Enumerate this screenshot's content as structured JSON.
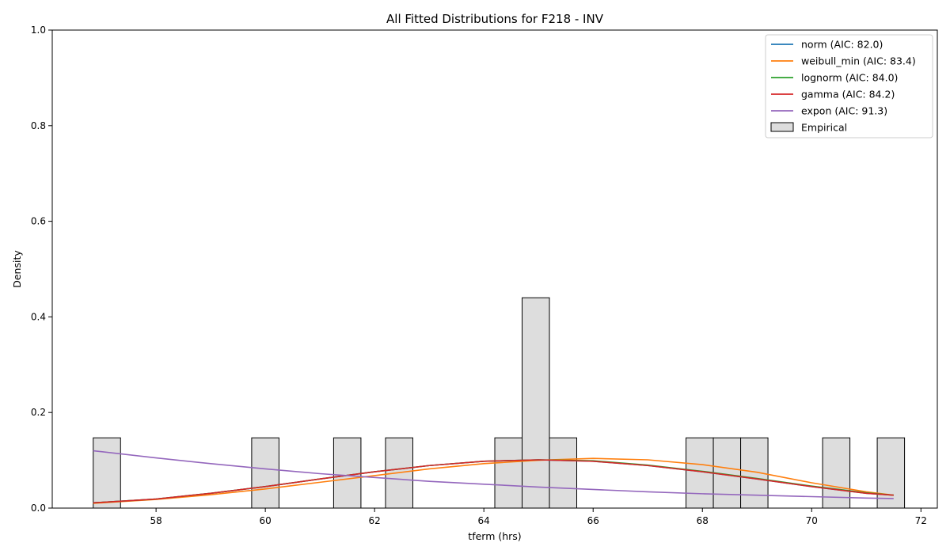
{
  "chart_data": {
    "type": "bar",
    "title": "All Fitted Distributions for F218 - INV",
    "xlabel": "tferm (hrs)",
    "ylabel": "Density",
    "xlim": [
      56.1,
      72.3
    ],
    "ylim": [
      0,
      1.0
    ],
    "xticks": [
      58,
      60,
      62,
      64,
      66,
      68,
      70,
      72
    ],
    "yticks": [
      0.0,
      0.2,
      0.4,
      0.6,
      0.8,
      1.0
    ],
    "xtick_labels": [
      "58",
      "60",
      "62",
      "64",
      "66",
      "68",
      "70",
      "72"
    ],
    "ytick_labels": [
      "0.0",
      "0.2",
      "0.4",
      "0.6",
      "0.8",
      "1.0"
    ],
    "legend_position": "upper right",
    "histogram": {
      "name": "Empirical",
      "face_color": "#dddddd",
      "edge_color": "#000000",
      "bins": [
        {
          "x0": 56.85,
          "x1": 57.35,
          "density": 0.147
        },
        {
          "x0": 59.75,
          "x1": 60.25,
          "density": 0.147
        },
        {
          "x0": 61.25,
          "x1": 61.75,
          "density": 0.147
        },
        {
          "x0": 62.2,
          "x1": 62.7,
          "density": 0.147
        },
        {
          "x0": 64.2,
          "x1": 64.7,
          "density": 0.147
        },
        {
          "x0": 64.7,
          "x1": 65.2,
          "density": 0.44
        },
        {
          "x0": 65.2,
          "x1": 65.7,
          "density": 0.147
        },
        {
          "x0": 67.7,
          "x1": 68.2,
          "density": 0.147
        },
        {
          "x0": 68.2,
          "x1": 68.7,
          "density": 0.147
        },
        {
          "x0": 68.7,
          "x1": 69.2,
          "density": 0.147
        },
        {
          "x0": 70.2,
          "x1": 70.7,
          "density": 0.147
        },
        {
          "x0": 71.2,
          "x1": 71.7,
          "density": 0.147
        }
      ]
    },
    "series": [
      {
        "name": "norm (AIC: 82.0)",
        "color": "#1f77b4",
        "x": [
          56.85,
          58,
          59,
          60,
          61,
          62,
          63,
          64,
          65,
          66,
          67,
          68,
          69,
          70,
          71,
          71.5
        ],
        "y": [
          0.011,
          0.019,
          0.031,
          0.045,
          0.061,
          0.076,
          0.089,
          0.098,
          0.101,
          0.098,
          0.089,
          0.076,
          0.061,
          0.045,
          0.031,
          0.027
        ]
      },
      {
        "name": "weibull_min (AIC: 83.4)",
        "color": "#ff7f0e",
        "x": [
          56.85,
          58,
          59,
          60,
          61,
          62,
          63,
          64,
          65,
          66,
          67,
          68,
          69,
          70,
          71,
          71.5
        ],
        "y": [
          0.01,
          0.018,
          0.028,
          0.04,
          0.054,
          0.068,
          0.082,
          0.093,
          0.1,
          0.104,
          0.101,
          0.091,
          0.075,
          0.053,
          0.034,
          0.027
        ]
      },
      {
        "name": "lognorm (AIC: 84.0)",
        "color": "#2ca02c",
        "x": [
          56.85,
          58,
          59,
          60,
          61,
          62,
          63,
          64,
          65,
          66,
          67,
          68,
          69,
          70,
          71,
          71.5
        ],
        "y": [
          0.011,
          0.019,
          0.031,
          0.045,
          0.061,
          0.076,
          0.089,
          0.098,
          0.101,
          0.099,
          0.09,
          0.077,
          0.062,
          0.046,
          0.032,
          0.027
        ]
      },
      {
        "name": "gamma (AIC: 84.2)",
        "color": "#d62728",
        "x": [
          56.85,
          58,
          59,
          60,
          61,
          62,
          63,
          64,
          65,
          66,
          67,
          68,
          69,
          70,
          71,
          71.5
        ],
        "y": [
          0.011,
          0.019,
          0.031,
          0.045,
          0.061,
          0.076,
          0.089,
          0.098,
          0.101,
          0.098,
          0.089,
          0.076,
          0.061,
          0.045,
          0.031,
          0.027
        ]
      },
      {
        "name": "expon (AIC: 91.3)",
        "color": "#9467bd",
        "x": [
          56.85,
          58,
          59,
          60,
          61,
          62,
          63,
          64,
          65,
          66,
          67,
          68,
          69,
          70,
          71,
          71.5
        ],
        "y": [
          0.12,
          0.105,
          0.093,
          0.082,
          0.072,
          0.064,
          0.056,
          0.05,
          0.044,
          0.039,
          0.034,
          0.03,
          0.027,
          0.024,
          0.021,
          0.02
        ]
      }
    ]
  }
}
